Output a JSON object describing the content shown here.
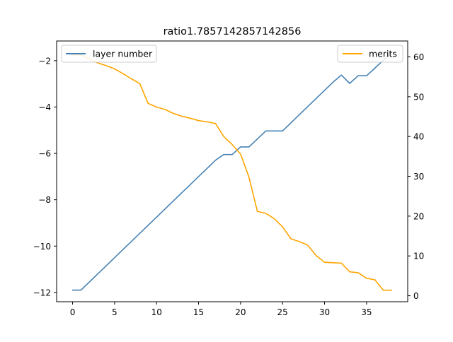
{
  "chart_data": {
    "type": "line",
    "title": "ratio1.7857142857142856",
    "x": [
      0,
      1,
      2,
      3,
      4,
      5,
      6,
      7,
      8,
      9,
      10,
      11,
      12,
      13,
      14,
      15,
      16,
      17,
      18,
      19,
      20,
      21,
      22,
      23,
      24,
      25,
      26,
      27,
      28,
      29,
      30,
      31,
      32,
      33,
      34,
      35,
      36,
      37,
      38
    ],
    "xlim": [
      -1.9,
      39.9
    ],
    "xticks": [
      0,
      5,
      10,
      15,
      20,
      25,
      30,
      35
    ],
    "series": [
      {
        "name": "layer number",
        "axis": "left",
        "color": "#4682b4",
        "values": [
          -11.9,
          -11.9,
          -11.55,
          -11.2,
          -10.85,
          -10.5,
          -10.15,
          -9.8,
          -9.45,
          -9.1,
          -8.75,
          -8.4,
          -8.05,
          -7.7,
          -7.35,
          -7.0,
          -6.65,
          -6.3,
          -6.05,
          -6.05,
          -5.72,
          -5.72,
          -5.38,
          -5.03,
          -5.03,
          -5.03,
          -4.68,
          -4.33,
          -3.98,
          -3.63,
          -3.28,
          -2.93,
          -2.62,
          -2.98,
          -2.65,
          -2.65,
          -2.32,
          -1.98,
          -1.65
        ]
      },
      {
        "name": "merits",
        "axis": "right",
        "color": "#ffa500",
        "values": [
          60.5,
          60.5,
          59.5,
          58.5,
          57.8,
          57.0,
          55.8,
          54.5,
          53.3,
          48.3,
          47.4,
          46.8,
          45.8,
          45.1,
          44.6,
          44.0,
          43.7,
          43.3,
          40.0,
          38.0,
          35.6,
          29.8,
          21.2,
          20.7,
          19.4,
          17.3,
          14.3,
          13.6,
          12.7,
          10.1,
          8.4,
          8.3,
          8.2,
          6.0,
          5.8,
          4.4,
          4.0,
          1.4,
          1.4
        ]
      }
    ],
    "y_left": {
      "lim": [
        -12.4,
        -1.15
      ],
      "ticks": [
        -12,
        -10,
        -8,
        -6,
        -4,
        -2
      ]
    },
    "y_right": {
      "lim": [
        -1.5,
        64.0
      ],
      "ticks": [
        0,
        10,
        20,
        30,
        40,
        50,
        60
      ]
    },
    "legend_left": {
      "placement": "upper-left",
      "labels": [
        "layer number"
      ]
    },
    "legend_right": {
      "placement": "upper-right",
      "labels": [
        "merits"
      ]
    },
    "grid": false
  }
}
